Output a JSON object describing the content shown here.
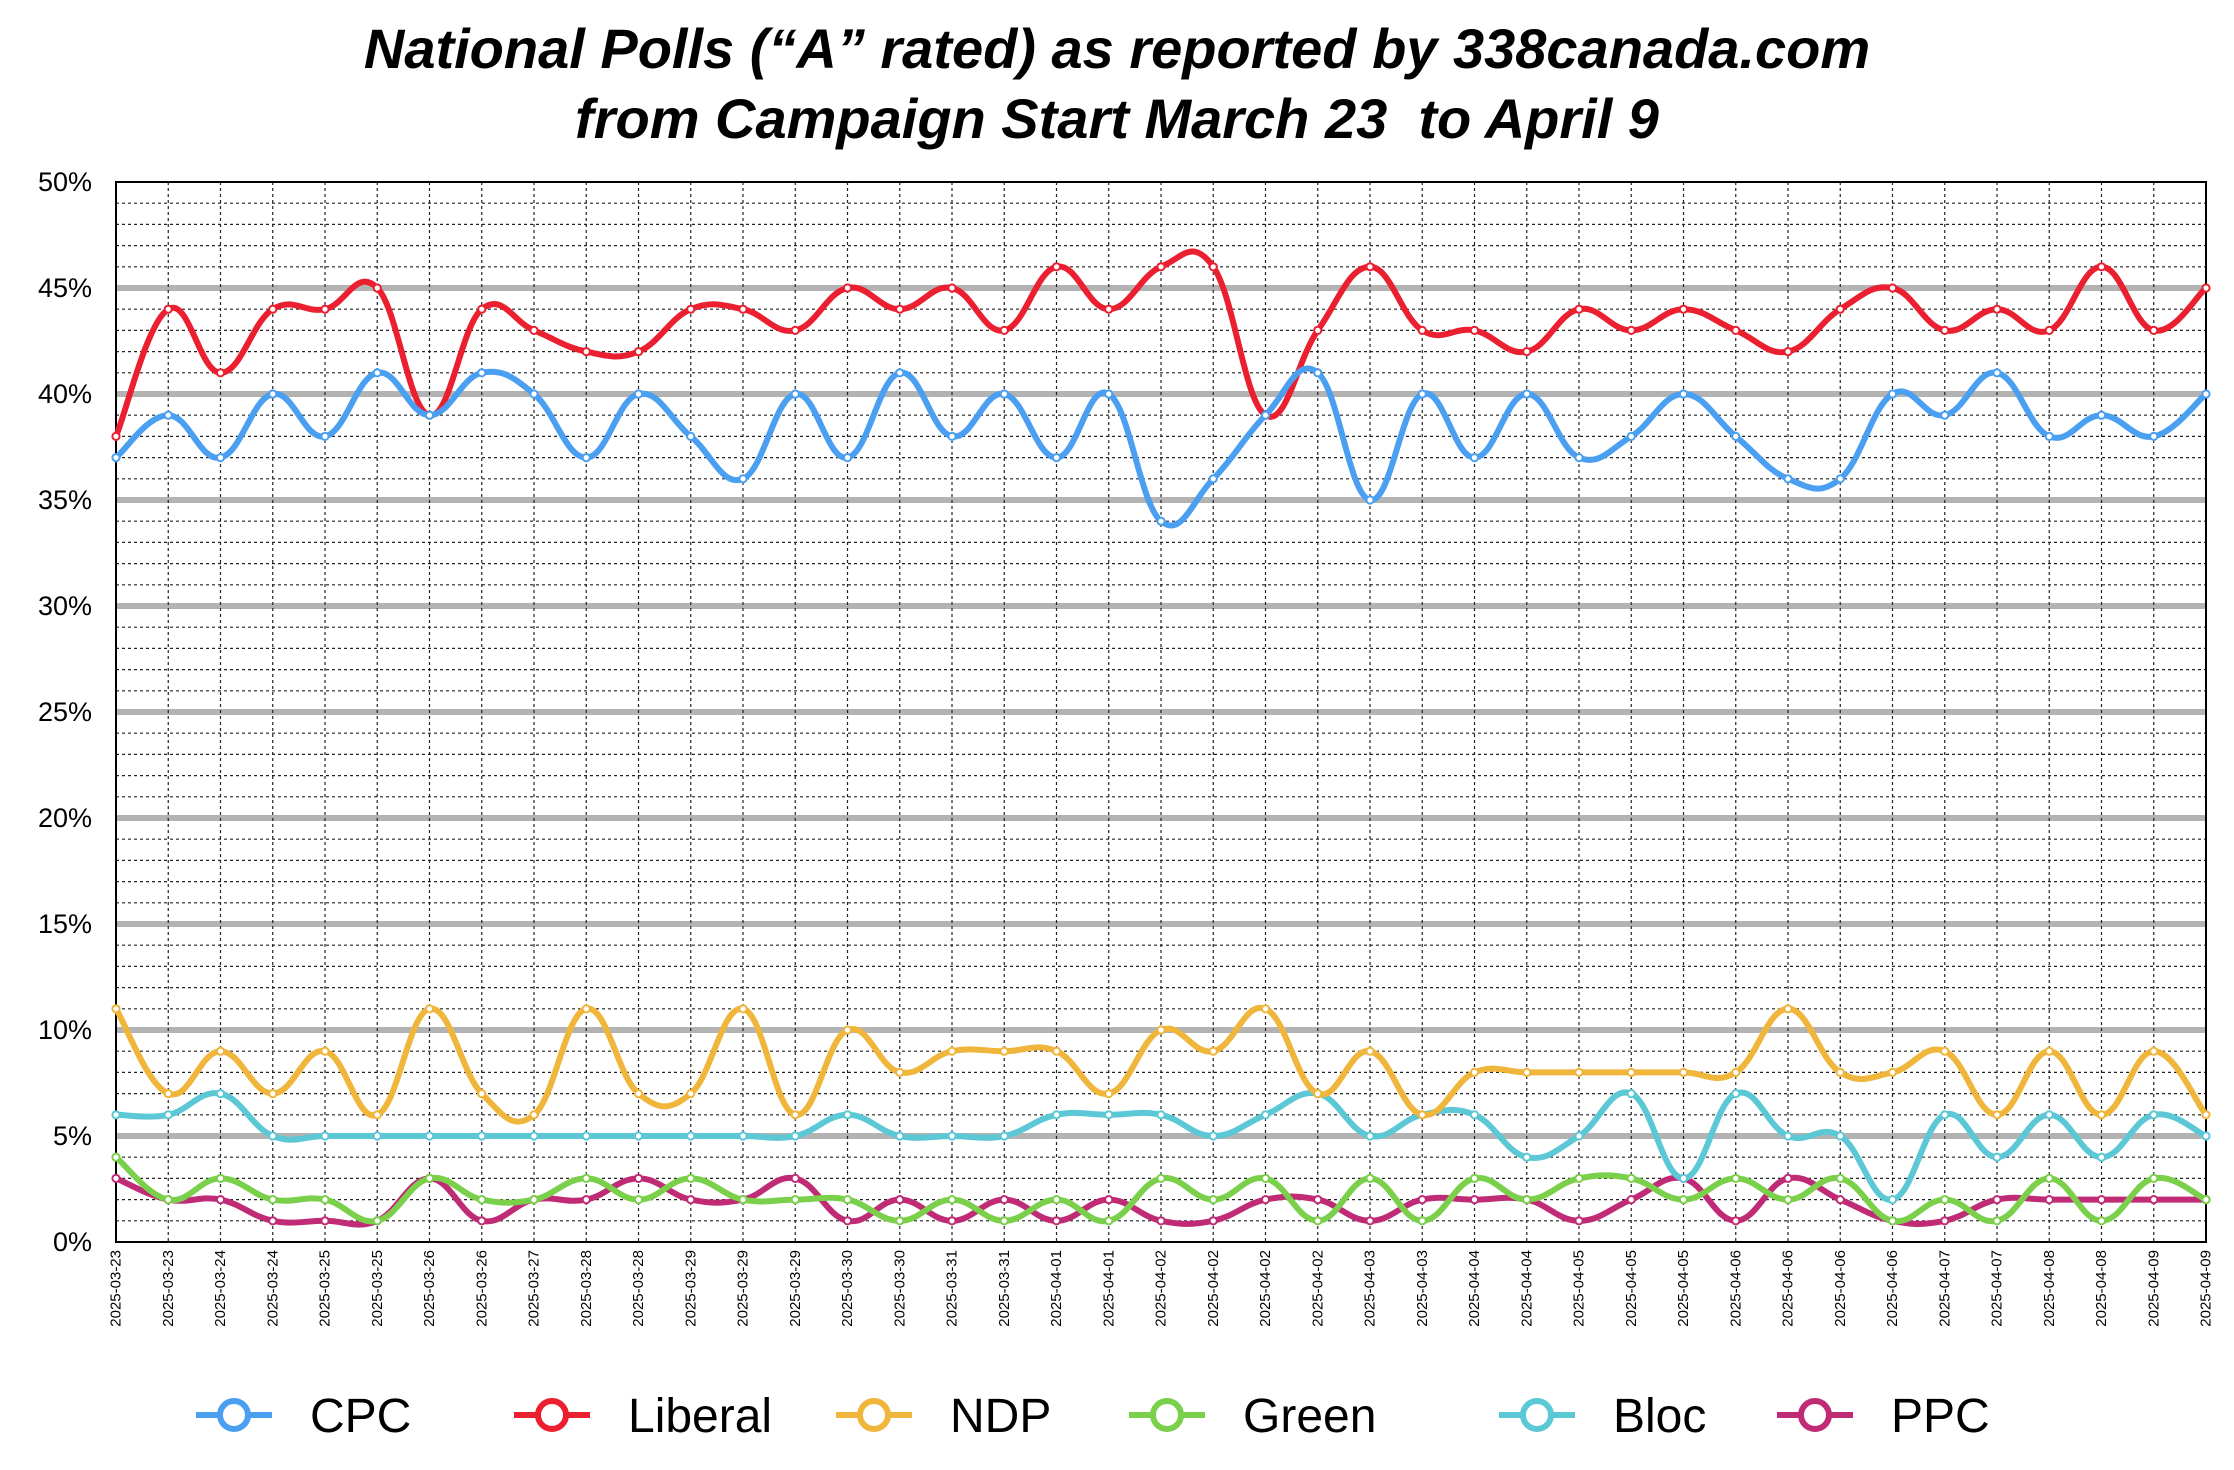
{
  "chart_data": {
    "type": "line",
    "title_lines": [
      "National Polls (“A” rated) as reported by 338canada.com",
      "from Campaign Start March 23  to April 9"
    ],
    "xlabel": "",
    "ylabel": "",
    "ylim": [
      0,
      50
    ],
    "y_ticks": [
      "0%",
      "5%",
      "10%",
      "15%",
      "20%",
      "25%",
      "30%",
      "35%",
      "40%",
      "45%",
      "50%"
    ],
    "grid": true,
    "legend_position": "bottom",
    "x": [
      "2025-03-23",
      "2025-03-23",
      "2025-03-24",
      "2025-03-24",
      "2025-03-25",
      "2025-03-25",
      "2025-03-26",
      "2025-03-26",
      "2025-03-27",
      "2025-03-28",
      "2025-03-28",
      "2025-03-29",
      "2025-03-29",
      "2025-03-29",
      "2025-03-30",
      "2025-03-30",
      "2025-03-31",
      "2025-03-31",
      "2025-04-01",
      "2025-04-01",
      "2025-04-02",
      "2025-04-02",
      "2025-04-02",
      "2025-04-02",
      "2025-04-03",
      "2025-04-03",
      "2025-04-04",
      "2025-04-04",
      "2025-04-05",
      "2025-04-05",
      "2025-04-05",
      "2025-04-06",
      "2025-04-06",
      "2025-04-06",
      "2025-04-06",
      "2025-04-07",
      "2025-04-07",
      "2025-04-08",
      "2025-04-08",
      "2025-04-09",
      "2025-04-09"
    ],
    "series": [
      {
        "name": "CPC",
        "color": "#4a9ff0",
        "values": [
          37,
          39,
          37,
          40,
          38,
          41,
          39,
          41,
          40,
          37,
          40,
          38,
          36,
          40,
          37,
          41,
          38,
          40,
          37,
          40,
          34,
          36,
          39,
          41,
          35,
          40,
          37,
          40,
          37,
          38,
          40,
          38,
          36,
          36,
          40,
          39,
          41,
          38,
          39,
          38,
          40
        ]
      },
      {
        "name": "Liberal",
        "color": "#ea1f2f",
        "values": [
          38,
          44,
          41,
          44,
          44,
          45,
          39,
          44,
          43,
          42,
          42,
          44,
          44,
          43,
          45,
          44,
          45,
          43,
          46,
          44,
          46,
          46,
          39,
          43,
          46,
          43,
          43,
          42,
          44,
          43,
          44,
          43,
          42,
          44,
          45,
          43,
          44,
          43,
          46,
          43,
          45
        ]
      },
      {
        "name": "NDP",
        "color": "#f0b53b",
        "values": [
          11,
          7,
          9,
          7,
          9,
          6,
          11,
          7,
          6,
          11,
          7,
          7,
          11,
          6,
          10,
          8,
          9,
          9,
          9,
          7,
          10,
          9,
          11,
          7,
          9,
          6,
          8,
          8,
          8,
          8,
          8,
          8,
          11,
          8,
          8,
          9,
          6,
          9,
          6,
          9,
          6
        ]
      },
      {
        "name": "Green",
        "color": "#7ad04a",
        "values": [
          4,
          2,
          3,
          2,
          2,
          1,
          3,
          2,
          2,
          3,
          2,
          3,
          2,
          2,
          2,
          1,
          2,
          1,
          2,
          1,
          3,
          2,
          3,
          1,
          3,
          1,
          3,
          2,
          3,
          3,
          2,
          3,
          2,
          3,
          1,
          2,
          1,
          3,
          1,
          3,
          2
        ]
      },
      {
        "name": "Bloc",
        "color": "#5cc8d6",
        "values": [
          6,
          6,
          7,
          5,
          5,
          5,
          5,
          5,
          5,
          5,
          5,
          5,
          5,
          5,
          6,
          5,
          5,
          5,
          6,
          6,
          6,
          5,
          6,
          7,
          5,
          6,
          6,
          4,
          5,
          7,
          3,
          7,
          5,
          5,
          2,
          6,
          4,
          6,
          4,
          6,
          5
        ]
      },
      {
        "name": "PPC",
        "color": "#c02b76",
        "values": [
          3,
          2,
          2,
          1,
          1,
          1,
          3,
          1,
          2,
          2,
          3,
          2,
          2,
          3,
          1,
          2,
          1,
          2,
          1,
          2,
          1,
          1,
          2,
          2,
          1,
          2,
          2,
          2,
          1,
          2,
          3,
          1,
          3,
          2,
          1,
          1,
          2,
          2,
          2,
          2,
          2
        ]
      }
    ]
  }
}
